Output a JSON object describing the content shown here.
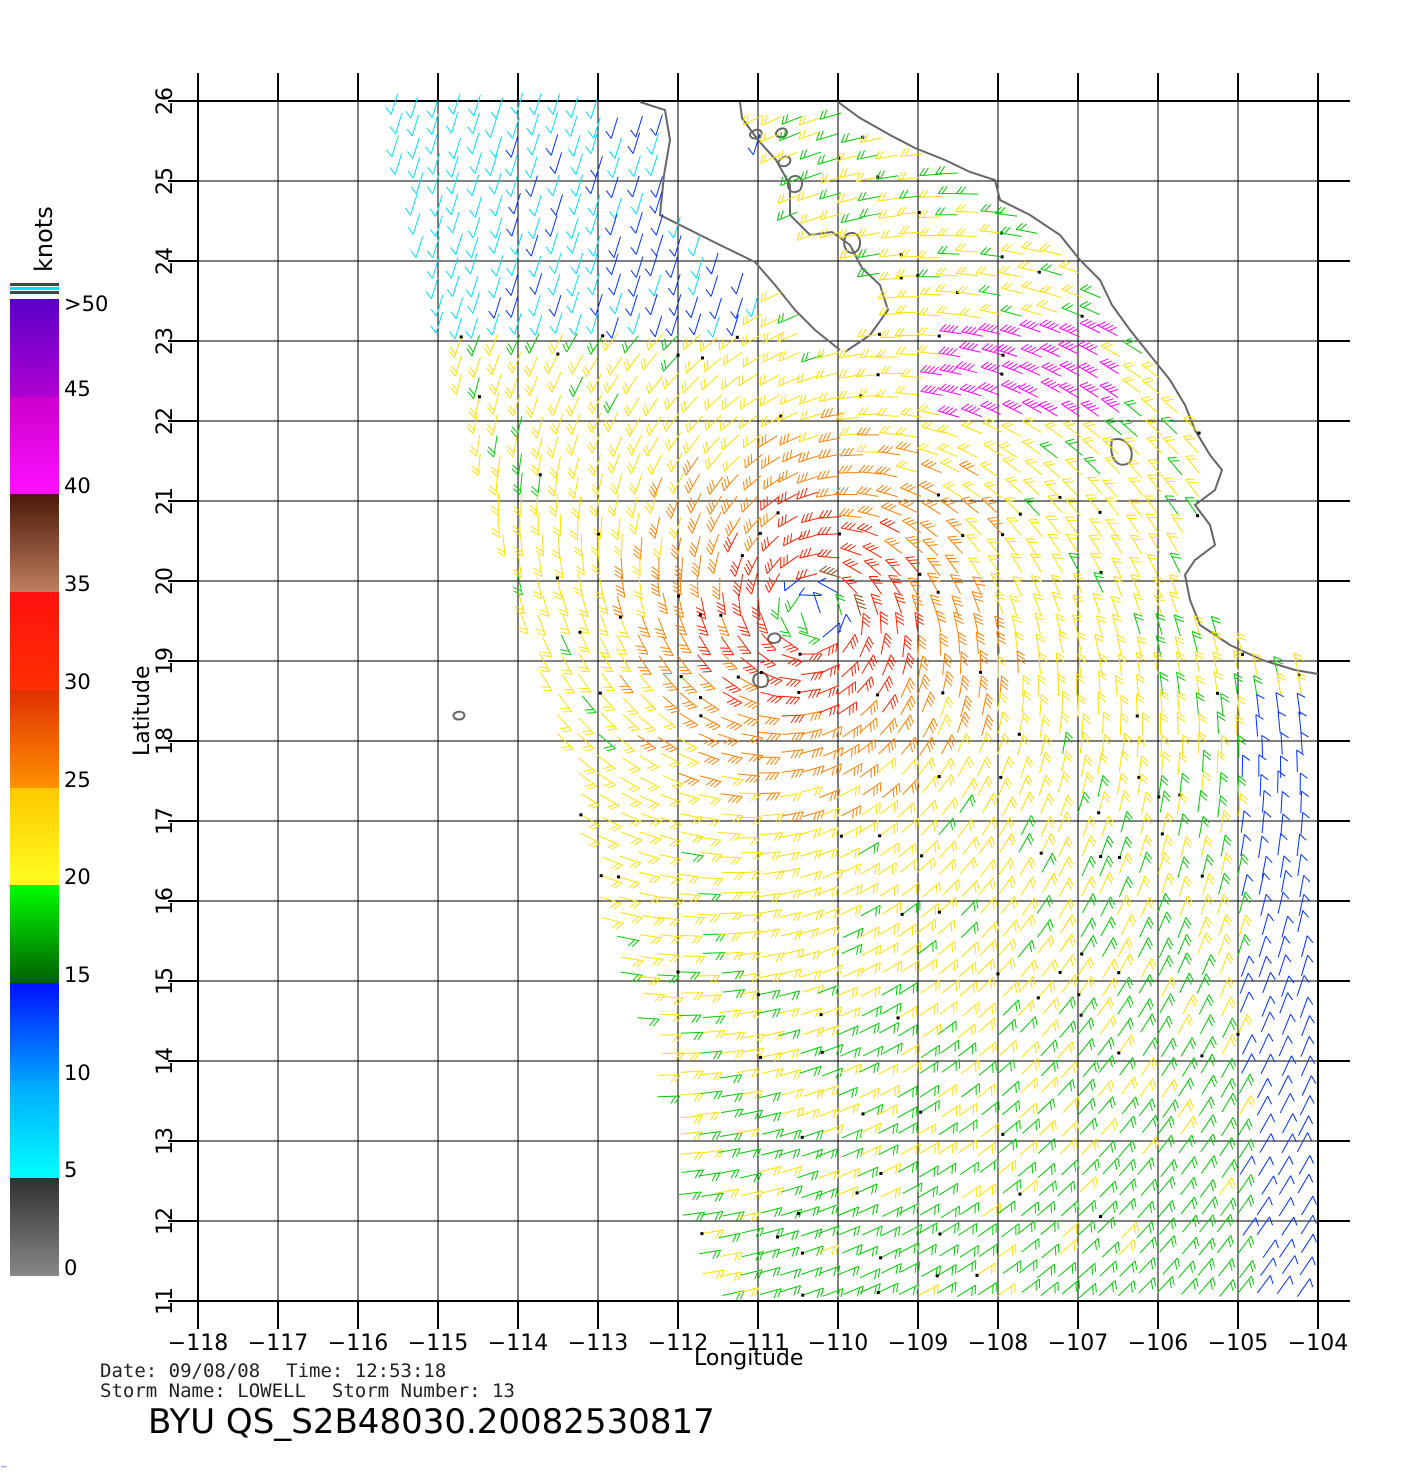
{
  "map": {
    "x_label": "Longitude",
    "y_label": "Latitude",
    "lon_ticks": [
      "−118",
      "−117",
      "−116",
      "−115",
      "−114",
      "−113",
      "−112",
      "−111",
      "−110",
      "−109",
      "−108",
      "−107",
      "−106",
      "−105",
      "−104"
    ],
    "lat_ticks": [
      "11",
      "12",
      "13",
      "14",
      "15",
      "16",
      "17",
      "18",
      "19",
      "20",
      "21",
      "22",
      "23",
      "24",
      "25",
      "26"
    ],
    "storm_center": {
      "lon": -110.3,
      "lat": 19.6
    }
  },
  "colorbar": {
    "units": "knots",
    "labels": [
      "0",
      "5",
      "10",
      "15",
      "20",
      "25",
      "30",
      "35",
      "40",
      "45",
      ">50"
    ],
    "colors": {
      "0-5": "#555555",
      "5-10": "#00e0ff",
      "10-15": "#0030ff",
      "15-20": "#00cc00",
      "20-25": "#ffe000",
      "25-30": "#ff8000",
      "30-35": "#ff2000",
      "35-40": "#8b4513",
      "40-45": "#ff00ff",
      ">50": "#6a0dad"
    }
  },
  "footer": {
    "date_label": "Date: 09/08/08",
    "time_label": "Time: 12:53:18",
    "storm_name_label": "Storm  Name: LOWELL",
    "storm_number_label": "Storm  Number: 13",
    "title": "BYU  QS_S2B48030.20082530817"
  },
  "corner_mark": "⁻"
}
